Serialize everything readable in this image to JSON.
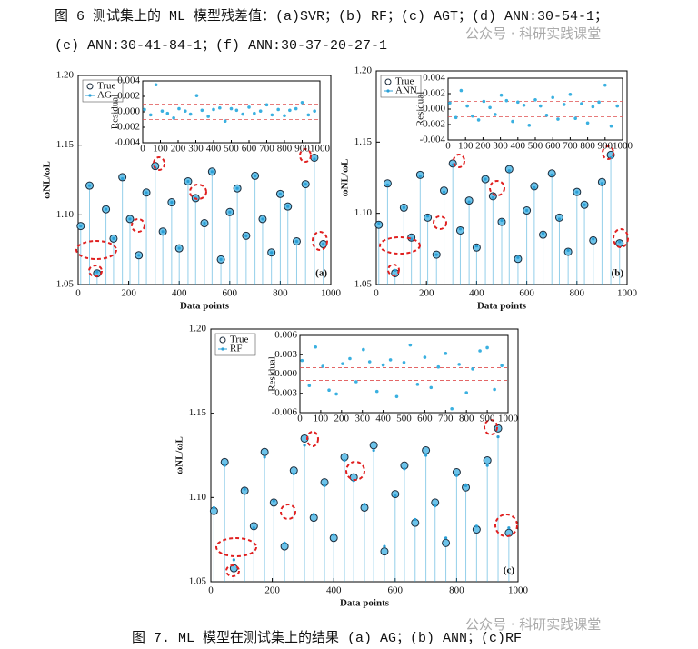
{
  "header": {
    "line1": "图 6 测试集上的 ML 模型残差值：(a)SVR；(b) RF；(c) AGT；(d) ANN:30-54-1；",
    "line2": "(e) ANN:30-41-84-1；(f) ANN:30-37-20-27-1"
  },
  "watermarks": [
    "公众号 · 科研实践课堂",
    "公众号 · 科研实践课堂"
  ],
  "caption": "图 7. ML 模型在测试集上的结果 (a) AG；(b) ANN；(c)RF",
  "chart_data": [
    {
      "type": "scatter",
      "panel": "(a)",
      "xlabel": "Data points",
      "ylabel": "ωNL/ωL",
      "xlim": [
        0,
        1000
      ],
      "ylim": [
        1.05,
        1.2
      ],
      "xticks": [
        0,
        200,
        400,
        600,
        800,
        1000
      ],
      "yticks": [
        1.05,
        {
          "value": 1.1,
          "label": "1.10"
        },
        1.15,
        {
          "value": 1.2,
          "label": "1.20"
        }
      ],
      "series": [
        {
          "name": "True",
          "color": "#6cc3ea",
          "x": [
            10,
            45,
            75,
            110,
            140,
            175,
            205,
            240,
            270,
            305,
            335,
            370,
            400,
            435,
            465,
            500,
            530,
            565,
            600,
            630,
            665,
            700,
            730,
            765,
            800,
            830,
            865,
            900,
            935,
            970
          ],
          "values": [
            1.092,
            1.121,
            1.058,
            1.104,
            1.083,
            1.127,
            1.097,
            1.071,
            1.116,
            1.135,
            1.088,
            1.109,
            1.076,
            1.124,
            1.112,
            1.094,
            1.131,
            1.068,
            1.102,
            1.119,
            1.085,
            1.128,
            1.097,
            1.073,
            1.115,
            1.106,
            1.081,
            1.122,
            1.141,
            1.079
          ]
        },
        {
          "name": "AG",
          "color": "#2a9fd6",
          "x": [
            10,
            45,
            75,
            110,
            140,
            175,
            205,
            240,
            270,
            305,
            335,
            370,
            400,
            435,
            465,
            500,
            530,
            565,
            600,
            630,
            665,
            700,
            730,
            765,
            800,
            830,
            865,
            900,
            935,
            970
          ],
          "values": [
            1.092,
            1.121,
            1.059,
            1.104,
            1.083,
            1.126,
            1.097,
            1.071,
            1.116,
            1.134,
            1.088,
            1.109,
            1.076,
            1.124,
            1.112,
            1.094,
            1.131,
            1.068,
            1.102,
            1.119,
            1.085,
            1.128,
            1.097,
            1.073,
            1.115,
            1.106,
            1.081,
            1.122,
            1.14,
            1.079
          ]
        }
      ],
      "inset": {
        "ylabel": "Residual",
        "xlim": [
          0,
          1000
        ],
        "ylim": [
          -0.004,
          0.004
        ],
        "xticks": [
          0,
          100,
          200,
          300,
          400,
          500,
          600,
          700,
          800,
          900,
          1000
        ],
        "yticks": [
          0.004,
          0.002,
          {
            "value": 0,
            "label": "0.000"
          },
          -0.002,
          -0.004
        ],
        "ref_lines": [
          -0.001,
          0.001
        ],
        "x": [
          10,
          45,
          75,
          110,
          140,
          175,
          205,
          240,
          270,
          305,
          335,
          370,
          400,
          435,
          465,
          500,
          530,
          565,
          600,
          630,
          665,
          700,
          730,
          765,
          800,
          830,
          865,
          900,
          935,
          970
        ],
        "values": [
          0.0003,
          -0.0004,
          0.0035,
          0.0001,
          -0.0002,
          -0.0008,
          0.0004,
          0.0001,
          -0.0003,
          0.0021,
          0.0002,
          -0.0006,
          0.0003,
          0.0005,
          -0.0012,
          0.0004,
          0.0002,
          -0.0003,
          0.0006,
          -0.0002,
          0.0001,
          0.0009,
          -0.0004,
          0.0003,
          -0.0005,
          0.0002,
          0.0004,
          0.0012,
          -0.0004,
          0.0001
        ]
      }
    },
    {
      "type": "scatter",
      "panel": "(b)",
      "xlabel": "Data points",
      "ylabel": "ωNL/ωL",
      "xlim": [
        0,
        1000
      ],
      "ylim": [
        1.05,
        1.2
      ],
      "xticks": [
        0,
        200,
        400,
        600,
        800,
        1000
      ],
      "yticks": [
        1.05,
        {
          "value": 1.1,
          "label": "1.10"
        },
        1.15,
        {
          "value": 1.2,
          "label": "1.20"
        }
      ],
      "series": [
        {
          "name": "True",
          "color": "#6cc3ea",
          "x": [
            10,
            45,
            75,
            110,
            140,
            175,
            205,
            240,
            270,
            305,
            335,
            370,
            400,
            435,
            465,
            500,
            530,
            565,
            600,
            630,
            665,
            700,
            730,
            765,
            800,
            830,
            865,
            900,
            935,
            970
          ],
          "values": [
            1.092,
            1.121,
            1.058,
            1.104,
            1.083,
            1.127,
            1.097,
            1.071,
            1.116,
            1.135,
            1.088,
            1.109,
            1.076,
            1.124,
            1.112,
            1.094,
            1.131,
            1.068,
            1.102,
            1.119,
            1.085,
            1.128,
            1.097,
            1.073,
            1.115,
            1.106,
            1.081,
            1.122,
            1.141,
            1.079
          ]
        },
        {
          "name": "ANN",
          "color": "#2a9fd6",
          "x": [
            10,
            45,
            75,
            110,
            140,
            175,
            205,
            240,
            270,
            305,
            335,
            370,
            400,
            435,
            465,
            500,
            530,
            565,
            600,
            630,
            665,
            700,
            730,
            765,
            800,
            830,
            865,
            900,
            935,
            970
          ],
          "values": [
            1.093,
            1.12,
            1.06,
            1.104,
            1.082,
            1.126,
            1.098,
            1.071,
            1.115,
            1.134,
            1.089,
            1.108,
            1.077,
            1.124,
            1.111,
            1.095,
            1.13,
            1.069,
            1.102,
            1.118,
            1.086,
            1.127,
            1.096,
            1.074,
            1.115,
            1.106,
            1.082,
            1.121,
            1.139,
            1.08
          ]
        }
      ],
      "inset": {
        "ylabel": "Residual",
        "xlim": [
          0,
          1000
        ],
        "ylim": [
          -0.004,
          0.004
        ],
        "xticks": [
          0,
          100,
          200,
          300,
          400,
          500,
          600,
          700,
          800,
          900,
          1000
        ],
        "yticks": [
          0.004,
          0.002,
          {
            "value": 0,
            "label": "0.000"
          },
          -0.002,
          -0.004
        ],
        "ref_lines": [
          -0.001,
          0.001
        ],
        "x": [
          10,
          45,
          75,
          110,
          140,
          175,
          205,
          240,
          270,
          305,
          335,
          370,
          400,
          435,
          465,
          500,
          530,
          565,
          600,
          630,
          665,
          700,
          730,
          765,
          800,
          830,
          865,
          900,
          935,
          970
        ],
        "values": [
          0.0008,
          -0.0011,
          0.0024,
          0.0004,
          -0.0009,
          -0.0014,
          0.001,
          0.0002,
          -0.0007,
          0.0018,
          0.0011,
          -0.0016,
          0.0009,
          0.0005,
          -0.0021,
          0.0012,
          0.0004,
          -0.0008,
          0.0015,
          -0.0013,
          0.0006,
          0.0019,
          -0.0012,
          0.0007,
          -0.0018,
          0.0003,
          0.0009,
          0.0031,
          -0.0022,
          0.0004
        ]
      }
    },
    {
      "type": "scatter",
      "panel": "(c)",
      "xlabel": "Data points",
      "ylabel": "ωNL/ωL",
      "xlim": [
        0,
        1000
      ],
      "ylim": [
        1.05,
        1.2
      ],
      "xticks": [
        0,
        200,
        400,
        600,
        800,
        1000
      ],
      "yticks": [
        1.05,
        {
          "value": 1.1,
          "label": "1.10"
        },
        1.15,
        {
          "value": 1.2,
          "label": "1.20"
        }
      ],
      "series": [
        {
          "name": "True",
          "color": "#6cc3ea",
          "x": [
            10,
            45,
            75,
            110,
            140,
            175,
            205,
            240,
            270,
            305,
            335,
            370,
            400,
            435,
            465,
            500,
            530,
            565,
            600,
            630,
            665,
            700,
            730,
            765,
            800,
            830,
            865,
            900,
            935,
            970
          ],
          "values": [
            1.092,
            1.121,
            1.058,
            1.104,
            1.083,
            1.127,
            1.097,
            1.071,
            1.116,
            1.135,
            1.088,
            1.109,
            1.076,
            1.124,
            1.112,
            1.094,
            1.131,
            1.068,
            1.102,
            1.119,
            1.085,
            1.128,
            1.097,
            1.073,
            1.115,
            1.106,
            1.081,
            1.122,
            1.141,
            1.079
          ]
        },
        {
          "name": "RF",
          "color": "#2a9fd6",
          "x": [
            10,
            45,
            75,
            110,
            140,
            175,
            205,
            240,
            270,
            305,
            335,
            370,
            400,
            435,
            465,
            500,
            530,
            565,
            600,
            630,
            665,
            700,
            730,
            765,
            800,
            830,
            865,
            900,
            935,
            970
          ],
          "values": [
            1.094,
            1.119,
            1.063,
            1.105,
            1.082,
            1.124,
            1.098,
            1.073,
            1.114,
            1.131,
            1.09,
            1.107,
            1.078,
            1.122,
            1.11,
            1.096,
            1.128,
            1.071,
            1.101,
            1.117,
            1.087,
            1.125,
            1.095,
            1.076,
            1.113,
            1.107,
            1.083,
            1.119,
            1.136,
            1.082
          ]
        }
      ],
      "inset": {
        "ylabel": "Residual",
        "xlim": [
          0,
          1000
        ],
        "ylim": [
          -0.006,
          0.006
        ],
        "xticks": [
          0,
          100,
          200,
          300,
          400,
          500,
          600,
          700,
          800,
          900,
          1000
        ],
        "yticks": [
          0.006,
          0.003,
          {
            "value": 0,
            "label": "0.000"
          },
          -0.003,
          -0.006
        ],
        "ref_lines": [
          -0.001,
          0.001
        ],
        "x": [
          10,
          45,
          75,
          110,
          140,
          175,
          205,
          240,
          270,
          305,
          335,
          370,
          400,
          435,
          465,
          500,
          530,
          565,
          600,
          630,
          665,
          700,
          730,
          765,
          800,
          830,
          865,
          900,
          935,
          970
        ],
        "values": [
          0.0021,
          -0.0018,
          0.0042,
          0.0012,
          -0.0025,
          -0.0031,
          0.0016,
          0.0024,
          -0.0012,
          0.0038,
          0.0019,
          -0.0027,
          0.0014,
          0.0022,
          -0.0035,
          0.0018,
          0.0045,
          -0.0016,
          0.0026,
          -0.0021,
          0.0011,
          0.0032,
          -0.0054,
          0.0015,
          -0.0029,
          0.0008,
          0.0036,
          0.0041,
          -0.0024,
          0.0013
        ]
      }
    }
  ]
}
